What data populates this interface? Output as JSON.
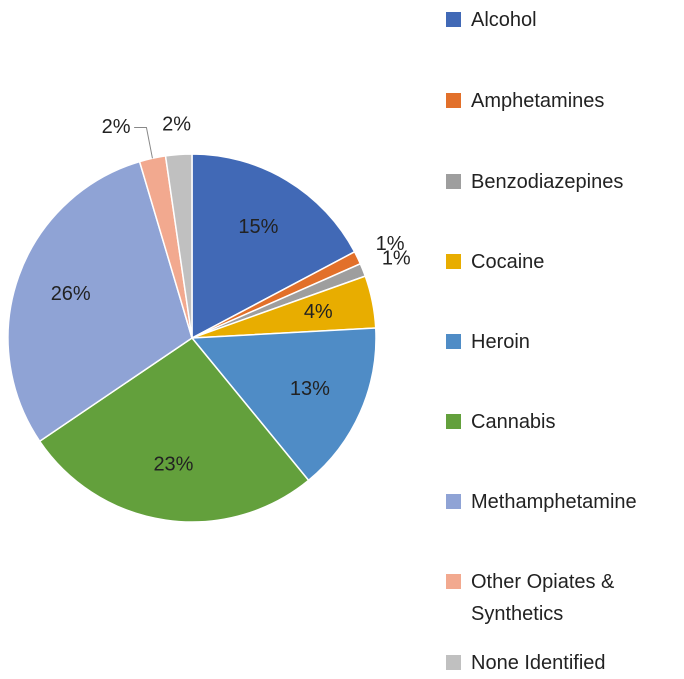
{
  "chart_data": {
    "type": "pie",
    "categories": [
      "Alcohol",
      "Amphetamines",
      "Benzodiazepines",
      "Cocaine",
      "Heroin",
      "Cannabis",
      "Methamphetamine",
      "Other Opiates & Synthetics",
      "None Identified"
    ],
    "values": [
      15,
      1,
      1,
      4,
      13,
      23,
      26,
      2,
      2
    ],
    "value_labels": [
      "15%",
      "1%",
      "1%",
      "4%",
      "13%",
      "23%",
      "26%",
      "2%",
      "2%"
    ],
    "colors": [
      "#4169b6",
      "#e2702a",
      "#9e9e9e",
      "#e8ad00",
      "#4f8cc6",
      "#63a03c",
      "#8fa3d5",
      "#f2a98f",
      "#c0c0c0"
    ],
    "legend": "right"
  }
}
